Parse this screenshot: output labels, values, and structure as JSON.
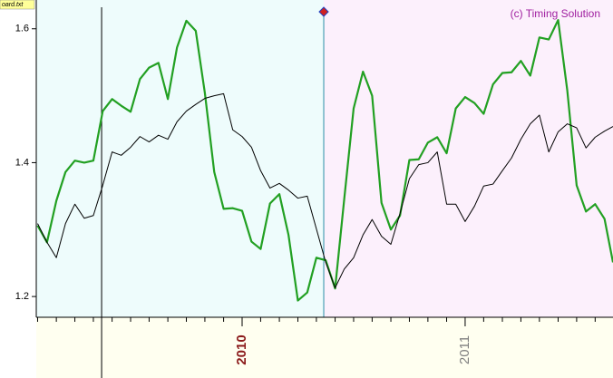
{
  "chart_data": {
    "type": "line",
    "file_label": "oard.txt",
    "annotation": "(c) Timing Solution",
    "annotation_color": "#a020a0",
    "x": [
      2009.083,
      2009.125,
      2009.167,
      2009.208,
      2009.25,
      2009.292,
      2009.333,
      2009.375,
      2009.417,
      2009.458,
      2009.5,
      2009.542,
      2009.583,
      2009.625,
      2009.667,
      2009.708,
      2009.75,
      2009.792,
      2009.833,
      2009.875,
      2009.917,
      2009.958,
      2010.0,
      2010.042,
      2010.083,
      2010.125,
      2010.167,
      2010.208,
      2010.25,
      2010.292,
      2010.333,
      2010.375,
      2010.417,
      2010.458,
      2010.5,
      2010.542,
      2010.583,
      2010.625,
      2010.667,
      2010.708,
      2010.75,
      2010.792,
      2010.833,
      2010.875,
      2010.917,
      2010.958,
      2011.0,
      2011.042,
      2011.083,
      2011.125,
      2011.167,
      2011.208,
      2011.25,
      2011.292,
      2011.333,
      2011.375,
      2011.417,
      2011.458,
      2011.5,
      2011.542,
      2011.583,
      2011.625,
      2011.663
    ],
    "series": [
      {
        "color": "#22a022",
        "values": [
          1.306,
          1.281,
          1.343,
          1.386,
          1.403,
          1.4,
          1.403,
          1.477,
          1.495,
          1.485,
          1.476,
          1.525,
          1.542,
          1.549,
          1.495,
          1.572,
          1.612,
          1.597,
          1.504,
          1.386,
          1.331,
          1.332,
          1.328,
          1.282,
          1.271,
          1.339,
          1.353,
          1.292,
          1.194,
          1.206,
          1.258,
          1.254,
          1.212,
          1.346,
          1.481,
          1.536,
          1.5,
          1.34,
          1.3,
          1.321,
          1.404,
          1.405,
          1.43,
          1.438,
          1.414,
          1.481,
          1.498,
          1.489,
          1.473,
          1.517,
          1.534,
          1.535,
          1.552,
          1.53,
          1.587,
          1.584,
          1.613,
          1.508,
          1.366,
          1.327,
          1.338,
          1.316,
          1.251
        ]
      },
      {
        "color": "#000000",
        "values": [
          1.309,
          1.281,
          1.258,
          1.309,
          1.338,
          1.317,
          1.321,
          1.366,
          1.416,
          1.411,
          1.423,
          1.439,
          1.431,
          1.441,
          1.435,
          1.461,
          1.477,
          1.487,
          1.496,
          1.5,
          1.503,
          1.449,
          1.439,
          1.423,
          1.388,
          1.362,
          1.369,
          1.359,
          1.347,
          1.35,
          1.301,
          1.251,
          1.213,
          1.241,
          1.258,
          1.292,
          1.315,
          1.29,
          1.278,
          1.324,
          1.376,
          1.397,
          1.4,
          1.416,
          1.338,
          1.338,
          1.312,
          1.335,
          1.365,
          1.368,
          1.388,
          1.407,
          1.435,
          1.458,
          1.471,
          1.416,
          1.446,
          1.458,
          1.452,
          1.422,
          1.438,
          1.447,
          1.454
        ]
      }
    ],
    "xlim": [
      2009.077,
      2011.663
    ],
    "xticks": [
      2010,
      2011
    ],
    "xtick_colors": [
      "#8b1a1a",
      "#808080"
    ],
    "xminorticks": [
      2009.083,
      2009.167,
      2009.25,
      2009.333,
      2009.417,
      2009.5,
      2009.583,
      2009.667,
      2009.75,
      2009.833,
      2009.917,
      2010.083,
      2010.167,
      2010.25,
      2010.333,
      2010.417,
      2010.5,
      2010.583,
      2010.667,
      2010.75,
      2010.833,
      2010.917,
      2011.083,
      2011.167,
      2011.25,
      2011.333,
      2011.417,
      2011.5,
      2011.583
    ],
    "ylim": [
      1.169,
      1.643
    ],
    "yticks": [
      1.2,
      1.4,
      1.6
    ],
    "vlines": [
      {
        "x": 2009.37,
        "color": "#000000"
      },
      {
        "x": 2010.366,
        "color": "#2a8fa8"
      }
    ],
    "shade_before": "#eefcfc",
    "shade_after": "#fcf0fc"
  }
}
